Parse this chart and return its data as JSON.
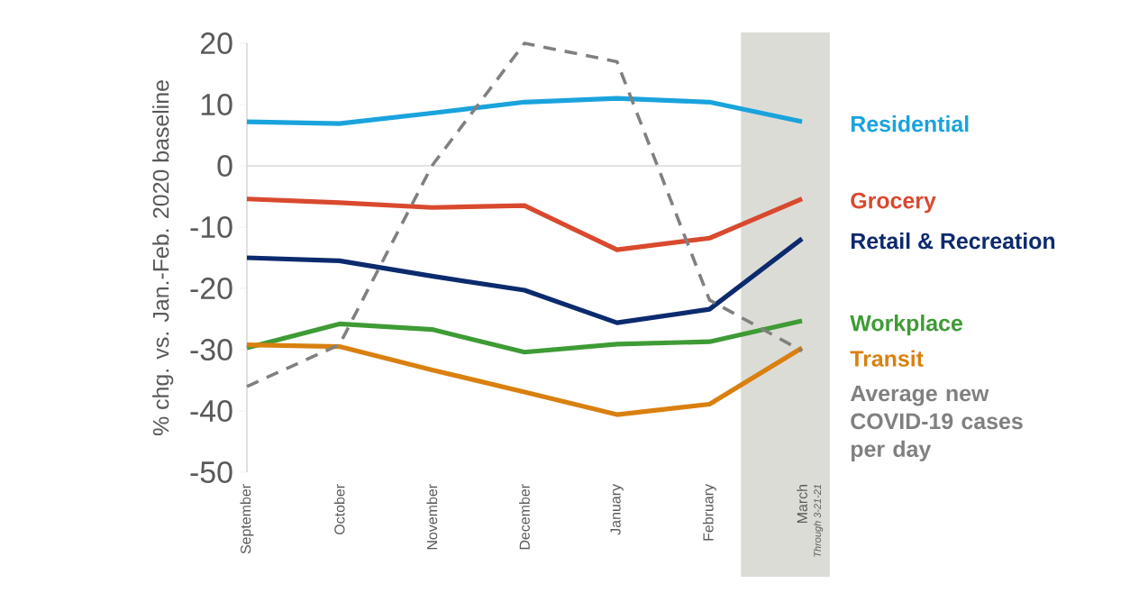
{
  "chart_data": {
    "type": "line",
    "ylabel": "% chg. vs. Jan.-Feb. 2020 baseline",
    "categories": [
      "September",
      "October",
      "November",
      "December",
      "January",
      "February",
      "March"
    ],
    "series": [
      {
        "name": "Residential",
        "color": "#1aa3dc",
        "values": [
          7.2,
          6.9,
          8.6,
          10.4,
          11,
          10.4,
          7.2
        ]
      },
      {
        "name": "Grocery",
        "color": "#d9492e",
        "values": [
          -5.4,
          -6,
          -6.8,
          -6.5,
          -13.7,
          -11.8,
          -5.4
        ]
      },
      {
        "name": "Retail & Recreation",
        "color": "#0c2a6e",
        "values": [
          -15,
          -15.5,
          -18,
          -20.3,
          -25.6,
          -23.4,
          -11.9
        ]
      },
      {
        "name": "Workplace",
        "color": "#3e9b35",
        "values": [
          -29.7,
          -25.8,
          -26.7,
          -30.4,
          -29.1,
          -28.7,
          -25.3
        ]
      },
      {
        "name": "Transit",
        "color": "#d9800f",
        "values": [
          -29.2,
          -29.5,
          -33.3,
          -36.9,
          -40.6,
          -38.9,
          -29.7
        ]
      },
      {
        "name": "Average new COVID-19 cases per day",
        "color": "#808080",
        "line_style": "dashed",
        "values": [
          -36,
          -29.2,
          0,
          20,
          17,
          -21.9,
          -30.2
        ]
      }
    ],
    "ylim": [
      -50,
      20
    ],
    "yticks": [
      -50,
      -40,
      -30,
      -20,
      -10,
      0,
      10,
      20
    ],
    "ref_lines": [
      {
        "axis": "y",
        "value": 0,
        "color": "#d9d9d9"
      }
    ],
    "annotations": [
      "Through 3-21-21"
    ],
    "grid": false
  }
}
